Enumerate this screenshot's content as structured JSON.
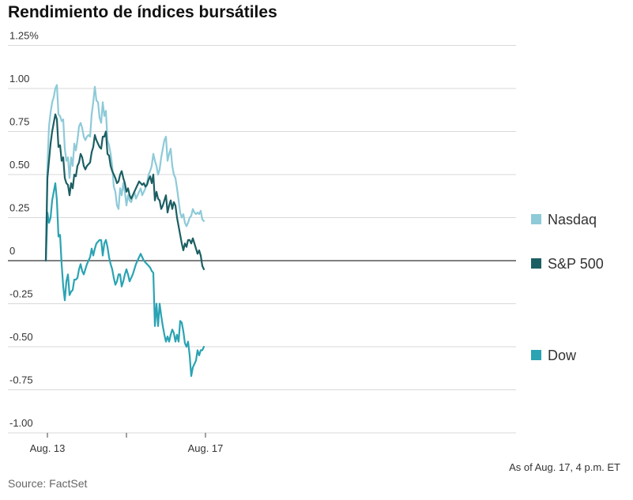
{
  "chart_data": {
    "type": "line",
    "title": "Rendimiento de índices bursátiles",
    "y_tick_labels": [
      "1.25%",
      "1.00",
      "0.75",
      "0.50",
      "0.25",
      "0",
      "-0.25",
      "-0.50",
      "-0.75",
      "-1.00"
    ],
    "y_tick_values": [
      1.25,
      1.0,
      0.75,
      0.5,
      0.25,
      0,
      -0.25,
      -0.5,
      -0.75,
      -1.0
    ],
    "ylim": [
      -1.0,
      1.25
    ],
    "x_ticks": [
      {
        "t": 0,
        "label": "Aug. 13"
      },
      {
        "t": 50,
        "label": ""
      },
      {
        "t": 100,
        "label": "Aug. 17"
      }
    ],
    "xlim": [
      0,
      150
    ],
    "grid": true,
    "legend_position": "right",
    "note": "As of Aug. 17, 4 p.m. ET",
    "source": "Source: FactSet",
    "series": [
      {
        "name": "Nasdaq",
        "color": "#8ecad8",
        "points": [
          [
            -1,
            0.0
          ],
          [
            0,
            0.55
          ],
          [
            1,
            0.78
          ],
          [
            2,
            0.86
          ],
          [
            3,
            0.92
          ],
          [
            4,
            0.95
          ],
          [
            5,
            1.0
          ],
          [
            6,
            1.02
          ],
          [
            7,
            0.85
          ],
          [
            8,
            0.84
          ],
          [
            9,
            0.81
          ],
          [
            10,
            0.82
          ],
          [
            11,
            0.65
          ],
          [
            12,
            0.58
          ],
          [
            13,
            0.6
          ],
          [
            14,
            0.48
          ],
          [
            15,
            0.6
          ],
          [
            16,
            0.55
          ],
          [
            17,
            0.68
          ],
          [
            18,
            0.64
          ],
          [
            19,
            0.7
          ],
          [
            20,
            0.78
          ],
          [
            21,
            0.8
          ],
          [
            22,
            0.77
          ],
          [
            23,
            0.72
          ],
          [
            24,
            0.7
          ],
          [
            25,
            0.72
          ],
          [
            26,
            0.73
          ],
          [
            27,
            0.72
          ],
          [
            28,
            0.85
          ],
          [
            29,
            0.92
          ],
          [
            30,
            1.01
          ],
          [
            31,
            0.93
          ],
          [
            32,
            0.92
          ],
          [
            33,
            0.83
          ],
          [
            34,
            0.8
          ],
          [
            35,
            0.92
          ],
          [
            36,
            0.84
          ],
          [
            37,
            0.87
          ],
          [
            38,
            0.7
          ],
          [
            39,
            0.67
          ],
          [
            40,
            0.62
          ],
          [
            41,
            0.55
          ],
          [
            42,
            0.43
          ],
          [
            43,
            0.4
          ],
          [
            44,
            0.32
          ],
          [
            45,
            0.3
          ],
          [
            46,
            0.42
          ],
          [
            47,
            0.38
          ],
          [
            48,
            0.45
          ],
          [
            49,
            0.4
          ],
          [
            50,
            0.32
          ],
          [
            51,
            0.38
          ],
          [
            52,
            0.35
          ],
          [
            53,
            0.34
          ],
          [
            54,
            0.37
          ],
          [
            55,
            0.4
          ],
          [
            56,
            0.36
          ],
          [
            57,
            0.38
          ],
          [
            58,
            0.4
          ],
          [
            59,
            0.42
          ],
          [
            60,
            0.38
          ],
          [
            61,
            0.4
          ],
          [
            62,
            0.42
          ],
          [
            63,
            0.45
          ],
          [
            64,
            0.5
          ],
          [
            65,
            0.52
          ],
          [
            66,
            0.55
          ],
          [
            67,
            0.62
          ],
          [
            68,
            0.58
          ],
          [
            69,
            0.55
          ],
          [
            70,
            0.5
          ],
          [
            71,
            0.53
          ],
          [
            72,
            0.6
          ],
          [
            73,
            0.65
          ],
          [
            74,
            0.7
          ],
          [
            75,
            0.72
          ],
          [
            76,
            0.58
          ],
          [
            77,
            0.62
          ],
          [
            78,
            0.65
          ],
          [
            79,
            0.55
          ],
          [
            80,
            0.5
          ],
          [
            81,
            0.48
          ],
          [
            82,
            0.42
          ],
          [
            83,
            0.35
          ],
          [
            84,
            0.28
          ],
          [
            85,
            0.25
          ],
          [
            86,
            0.27
          ],
          [
            87,
            0.22
          ],
          [
            88,
            0.2
          ],
          [
            89,
            0.22
          ],
          [
            90,
            0.25
          ],
          [
            91,
            0.26
          ],
          [
            92,
            0.3
          ],
          [
            93,
            0.28
          ],
          [
            94,
            0.27
          ],
          [
            95,
            0.28
          ],
          [
            96,
            0.27
          ],
          [
            97,
            0.29
          ],
          [
            98,
            0.24
          ],
          [
            99,
            0.23
          ]
        ]
      },
      {
        "name": "S&P 500",
        "color": "#1c5f63",
        "points": [
          [
            -1,
            0.0
          ],
          [
            0,
            0.48
          ],
          [
            1,
            0.58
          ],
          [
            2,
            0.68
          ],
          [
            3,
            0.75
          ],
          [
            4,
            0.8
          ],
          [
            5,
            0.85
          ],
          [
            6,
            0.82
          ],
          [
            7,
            0.66
          ],
          [
            8,
            0.67
          ],
          [
            9,
            0.58
          ],
          [
            10,
            0.6
          ],
          [
            11,
            0.48
          ],
          [
            12,
            0.45
          ],
          [
            13,
            0.44
          ],
          [
            14,
            0.38
          ],
          [
            15,
            0.45
          ],
          [
            16,
            0.42
          ],
          [
            17,
            0.5
          ],
          [
            18,
            0.49
          ],
          [
            19,
            0.55
          ],
          [
            20,
            0.57
          ],
          [
            21,
            0.62
          ],
          [
            22,
            0.6
          ],
          [
            23,
            0.55
          ],
          [
            24,
            0.53
          ],
          [
            25,
            0.55
          ],
          [
            26,
            0.56
          ],
          [
            27,
            0.57
          ],
          [
            28,
            0.63
          ],
          [
            29,
            0.66
          ],
          [
            30,
            0.73
          ],
          [
            31,
            0.7
          ],
          [
            32,
            0.68
          ],
          [
            33,
            0.66
          ],
          [
            34,
            0.65
          ],
          [
            35,
            0.72
          ],
          [
            36,
            0.72
          ],
          [
            37,
            0.75
          ],
          [
            38,
            0.62
          ],
          [
            39,
            0.61
          ],
          [
            40,
            0.55
          ],
          [
            41,
            0.52
          ],
          [
            42,
            0.5
          ],
          [
            43,
            0.48
          ],
          [
            44,
            0.45
          ],
          [
            45,
            0.46
          ],
          [
            46,
            0.5
          ],
          [
            47,
            0.52
          ],
          [
            48,
            0.48
          ],
          [
            49,
            0.45
          ],
          [
            50,
            0.4
          ],
          [
            51,
            0.42
          ],
          [
            52,
            0.38
          ],
          [
            53,
            0.36
          ],
          [
            54,
            0.38
          ],
          [
            55,
            0.4
          ],
          [
            56,
            0.42
          ],
          [
            57,
            0.44
          ],
          [
            58,
            0.46
          ],
          [
            59,
            0.45
          ],
          [
            60,
            0.44
          ],
          [
            61,
            0.45
          ],
          [
            62,
            0.43
          ],
          [
            63,
            0.44
          ],
          [
            64,
            0.47
          ],
          [
            65,
            0.49
          ],
          [
            66,
            0.45
          ],
          [
            67,
            0.5
          ],
          [
            68,
            0.35
          ],
          [
            69,
            0.4
          ],
          [
            70,
            0.36
          ],
          [
            71,
            0.35
          ],
          [
            72,
            0.3
          ],
          [
            73,
            0.32
          ],
          [
            74,
            0.35
          ],
          [
            75,
            0.38
          ],
          [
            76,
            0.28
          ],
          [
            77,
            0.32
          ],
          [
            78,
            0.35
          ],
          [
            79,
            0.3
          ],
          [
            80,
            0.34
          ],
          [
            81,
            0.32
          ],
          [
            82,
            0.25
          ],
          [
            83,
            0.2
          ],
          [
            84,
            0.15
          ],
          [
            85,
            0.1
          ],
          [
            86,
            0.06
          ],
          [
            87,
            0.1
          ],
          [
            88,
            0.08
          ],
          [
            89,
            0.12
          ],
          [
            90,
            0.12
          ],
          [
            91,
            0.1
          ],
          [
            92,
            0.13
          ],
          [
            93,
            0.1
          ],
          [
            94,
            0.07
          ],
          [
            95,
            0.04
          ],
          [
            96,
            0.06
          ],
          [
            97,
            0.03
          ],
          [
            98,
            -0.03
          ],
          [
            99,
            -0.05
          ]
        ]
      },
      {
        "name": "Dow",
        "color": "#2aa3b3",
        "points": [
          [
            -1,
            0.0
          ],
          [
            0,
            0.28
          ],
          [
            1,
            0.22
          ],
          [
            2,
            0.25
          ],
          [
            3,
            0.35
          ],
          [
            4,
            0.4
          ],
          [
            5,
            0.45
          ],
          [
            6,
            0.35
          ],
          [
            7,
            0.14
          ],
          [
            8,
            0.15
          ],
          [
            9,
            -0.02
          ],
          [
            10,
            -0.15
          ],
          [
            11,
            -0.23
          ],
          [
            12,
            -0.12
          ],
          [
            13,
            -0.08
          ],
          [
            14,
            -0.2
          ],
          [
            15,
            -0.18
          ],
          [
            16,
            -0.17
          ],
          [
            17,
            -0.11
          ],
          [
            18,
            -0.11
          ],
          [
            19,
            -0.1
          ],
          [
            20,
            -0.05
          ],
          [
            21,
            -0.02
          ],
          [
            22,
            -0.06
          ],
          [
            23,
            -0.08
          ],
          [
            24,
            -0.05
          ],
          [
            25,
            -0.02
          ],
          [
            26,
            0.0
          ],
          [
            27,
            0.02
          ],
          [
            28,
            0.07
          ],
          [
            29,
            0.03
          ],
          [
            30,
            0.07
          ],
          [
            31,
            0.1
          ],
          [
            32,
            0.11
          ],
          [
            33,
            0.12
          ],
          [
            34,
            0.12
          ],
          [
            35,
            0.03
          ],
          [
            36,
            0.1
          ],
          [
            37,
            0.12
          ],
          [
            38,
            0.08
          ],
          [
            39,
            0.02
          ],
          [
            40,
            -0.02
          ],
          [
            41,
            -0.05
          ],
          [
            42,
            -0.1
          ],
          [
            43,
            -0.14
          ],
          [
            44,
            -0.12
          ],
          [
            45,
            -0.08
          ],
          [
            46,
            -0.08
          ],
          [
            47,
            -0.15
          ],
          [
            48,
            -0.12
          ],
          [
            49,
            -0.08
          ],
          [
            50,
            -0.05
          ],
          [
            51,
            -0.08
          ],
          [
            52,
            -0.12
          ],
          [
            53,
            -0.1
          ],
          [
            54,
            -0.08
          ],
          [
            55,
            -0.05
          ],
          [
            56,
            -0.02
          ],
          [
            57,
            0.0
          ],
          [
            58,
            0.02
          ],
          [
            59,
            0.04
          ],
          [
            60,
            0.02
          ],
          [
            61,
            0.0
          ],
          [
            62,
            -0.01
          ],
          [
            63,
            -0.02
          ],
          [
            64,
            -0.03
          ],
          [
            65,
            -0.04
          ],
          [
            66,
            -0.06
          ],
          [
            67,
            -0.07
          ],
          [
            68,
            -0.38
          ],
          [
            69,
            -0.25
          ],
          [
            70,
            -0.38
          ],
          [
            71,
            -0.25
          ],
          [
            72,
            -0.32
          ],
          [
            73,
            -0.38
          ],
          [
            74,
            -0.43
          ],
          [
            75,
            -0.47
          ],
          [
            76,
            -0.44
          ],
          [
            77,
            -0.47
          ],
          [
            78,
            -0.43
          ],
          [
            79,
            -0.4
          ],
          [
            80,
            -0.42
          ],
          [
            81,
            -0.47
          ],
          [
            82,
            -0.43
          ],
          [
            83,
            -0.47
          ],
          [
            84,
            -0.35
          ],
          [
            85,
            -0.36
          ],
          [
            86,
            -0.41
          ],
          [
            87,
            -0.48
          ],
          [
            88,
            -0.5
          ],
          [
            89,
            -0.47
          ],
          [
            90,
            -0.55
          ],
          [
            91,
            -0.67
          ],
          [
            92,
            -0.62
          ],
          [
            93,
            -0.6
          ],
          [
            94,
            -0.58
          ],
          [
            95,
            -0.52
          ],
          [
            96,
            -0.55
          ],
          [
            97,
            -0.52
          ],
          [
            98,
            -0.52
          ],
          [
            99,
            -0.5
          ]
        ]
      }
    ]
  }
}
